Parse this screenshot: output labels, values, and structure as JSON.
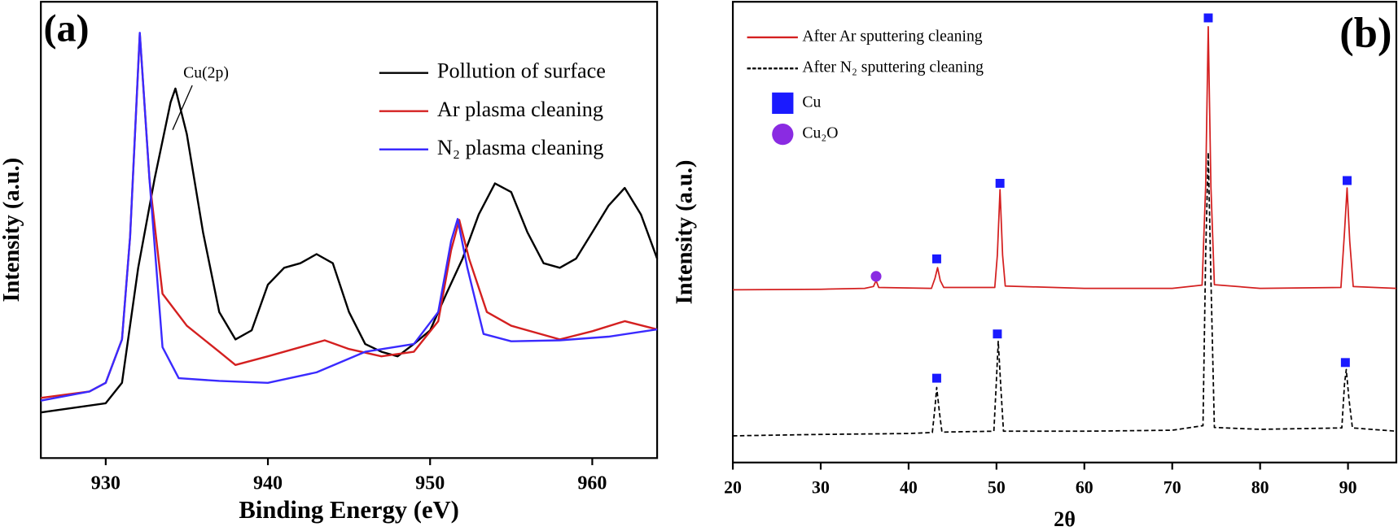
{
  "chart_data": [
    {
      "type": "line",
      "label": "(a)",
      "xlabel": "Binding Energy (eV)",
      "ylabel": "Intensity (a.u.)",
      "xlim": [
        926,
        964
      ],
      "xticks": [
        930,
        940,
        950,
        960
      ],
      "ylim": [
        0,
        100
      ],
      "annotation": "Cu(2p)",
      "legend": "upper right",
      "series": [
        {
          "name": "Pollution of surface",
          "color": "#000000",
          "x": [
            926,
            928,
            930,
            931,
            932,
            933,
            934,
            934.3,
            935,
            936,
            937,
            938,
            939,
            940,
            941,
            942,
            943,
            944,
            945,
            946,
            947,
            948,
            949,
            950,
            951,
            952,
            953,
            954,
            955,
            956,
            957,
            958,
            959,
            960,
            961,
            962,
            963,
            964
          ],
          "values": [
            10,
            11,
            12,
            16.5,
            41.7,
            61,
            78,
            81,
            71,
            49.5,
            32,
            26,
            28,
            38,
            41.7,
            42.7,
            44.7,
            42.7,
            32,
            25,
            23.3,
            22.3,
            25,
            28,
            36,
            43.7,
            53.4,
            60.2,
            58.3,
            49.5,
            42.7,
            41.7,
            43.7,
            49.5,
            55.3,
            59.2,
            53.4,
            43.7
          ]
        },
        {
          "name": "Ar plasma cleaning",
          "color": "#d42020",
          "x": [
            926,
            929,
            930,
            931,
            931.5,
            932.1,
            932.7,
            933.5,
            935,
            937,
            938,
            940,
            942,
            943.5,
            945,
            947,
            949,
            950.5,
            951.3,
            951.8,
            952.4,
            953.5,
            955,
            958,
            960,
            962,
            964
          ],
          "values": [
            13.2,
            14.6,
            16.5,
            26,
            48.5,
            93,
            61,
            36,
            29,
            23.3,
            20.4,
            22.3,
            24.3,
            25.8,
            23.9,
            22.3,
            23.3,
            30,
            45.6,
            52.2,
            43.7,
            32,
            29,
            26,
            27.8,
            30,
            28.2
          ]
        },
        {
          "name": "N₂ plasma cleaning",
          "color": "#3a2aff",
          "x": [
            926,
            929,
            930,
            931,
            931.5,
            932.1,
            932.7,
            933.5,
            934.5,
            937,
            940,
            943,
            946,
            949,
            950.5,
            951.3,
            951.7,
            952.3,
            953.3,
            955,
            958,
            961,
            964
          ],
          "values": [
            12.6,
            14.6,
            16.5,
            26,
            48.5,
            93.2,
            61,
            24.3,
            17.5,
            16.9,
            16.5,
            18.8,
            23.3,
            25,
            32,
            47.6,
            52.4,
            41.7,
            27.2,
            25.6,
            25.8,
            26.6,
            28.2
          ]
        }
      ]
    },
    {
      "type": "line",
      "label": "(b)",
      "xlabel": "2θ",
      "ylabel": "Intensity (a.u.)",
      "xlim": [
        20,
        95.5
      ],
      "xticks": [
        20,
        30,
        40,
        50,
        60,
        70,
        80,
        90
      ],
      "ylim": [
        0,
        100
      ],
      "legend": "upper left",
      "series": [
        {
          "name": "After Ar sputtering cleaning",
          "color": "#d42020",
          "dash": false,
          "x": [
            20,
            30,
            35,
            36,
            36.3,
            36.6,
            42.6,
            43.0,
            43.3,
            43.6,
            44,
            49.8,
            50.1,
            50.4,
            50.7,
            51,
            60,
            70,
            73.4,
            73.8,
            74.1,
            74.4,
            74.8,
            80,
            89.2,
            89.6,
            89.9,
            90.2,
            90.6,
            95.5
          ],
          "values": [
            37.5,
            37.6,
            37.8,
            38.2,
            39.5,
            38,
            37.8,
            40,
            42.3,
            39.5,
            38,
            38,
            45,
            59.2,
            45,
            38.3,
            37.8,
            37.8,
            38.5,
            60,
            94.6,
            60,
            38.6,
            37.8,
            38,
            50,
            59.6,
            48,
            38.2,
            37.8
          ]
        },
        {
          "name": "After N₂ sputtering cleaning",
          "color": "#000000",
          "dash": true,
          "x": [
            20,
            30,
            40,
            42.7,
            43.0,
            43.2,
            43.5,
            43.8,
            49.7,
            50.0,
            50.2,
            50.5,
            50.8,
            60,
            70,
            73.5,
            73.8,
            74.1,
            74.4,
            74.8,
            80,
            89.3,
            89.6,
            89.8,
            90.1,
            90.5,
            95.5
          ],
          "values": [
            5.8,
            6.1,
            6.3,
            6.5,
            12,
            16.3,
            11,
            6.6,
            6.8,
            18,
            26.3,
            16,
            6.8,
            6.8,
            7,
            8,
            45,
            67.3,
            40,
            7.6,
            7.2,
            7.5,
            17,
            20.2,
            14,
            7.5,
            6.8
          ]
        }
      ],
      "markers": [
        {
          "name": "Cu",
          "shape": "square",
          "color": "#1a1aff",
          "x": [
            43.2,
            50.4,
            74.1,
            89.9,
            43.2,
            50.1,
            89.7
          ],
          "values": [
            44.2,
            60.6,
            96.5,
            61.2,
            18.3,
            27.9,
            21.7
          ]
        },
        {
          "name": "Cu₂O",
          "shape": "circle",
          "color": "#8a2be2",
          "x": [
            36.3
          ],
          "values": [
            40.4
          ]
        }
      ]
    }
  ]
}
